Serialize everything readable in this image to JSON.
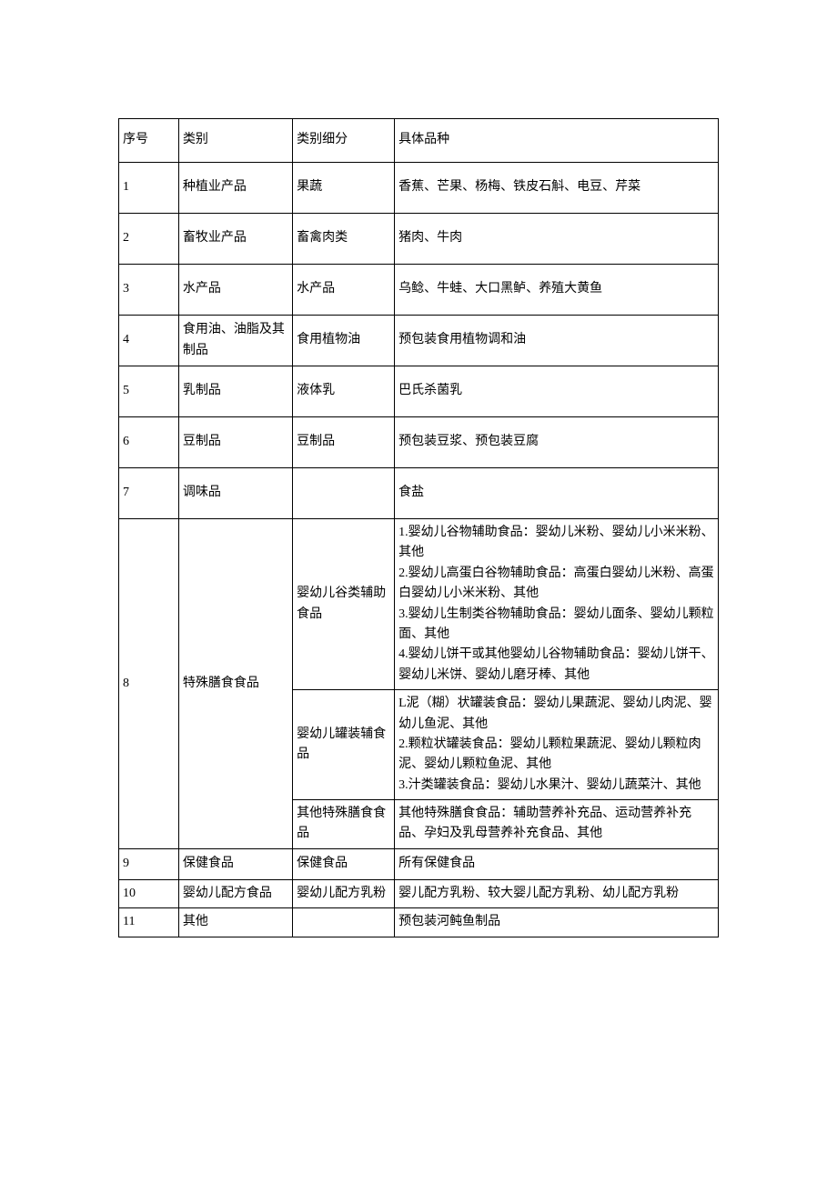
{
  "table": {
    "background_color": "#ffffff",
    "border_color": "#000000",
    "font_family": "SimSun",
    "font_size": 14,
    "text_color": "#000000",
    "columns": [
      {
        "key": "序号",
        "width_pct": 10
      },
      {
        "key": "类别",
        "width_pct": 19
      },
      {
        "key": "类别细分",
        "width_pct": 17
      },
      {
        "key": "具体品种",
        "width_pct": 54
      }
    ],
    "header": {
      "num": "序号",
      "category": "类别",
      "subcategory": "类别细分",
      "detail": "具体品种"
    },
    "rows": [
      {
        "num": "1",
        "category": "种植业产品",
        "subcategory": "果蔬",
        "detail": "香蕉、芒果、杨梅、铁皮石斛、电豆、芹菜"
      },
      {
        "num": "2",
        "category": "畜牧业产品",
        "subcategory": "畜禽肉类",
        "detail": "猪肉、牛肉"
      },
      {
        "num": "3",
        "category": "水产品",
        "subcategory": "水产品",
        "detail": "乌鲶、牛蛙、大口黑鲈、养殖大黄鱼"
      },
      {
        "num": "4",
        "category": "食用油、油脂及其制品",
        "subcategory": "食用植物油",
        "detail": "预包装食用植物调和油"
      },
      {
        "num": "5",
        "category": "乳制品",
        "subcategory": "液体乳",
        "detail": "巴氏杀菌乳"
      },
      {
        "num": "6",
        "category": "豆制品",
        "subcategory": "豆制品",
        "detail": "预包装豆浆、预包装豆腐"
      },
      {
        "num": "7",
        "category": "调味品",
        "subcategory": "",
        "detail": "食盐"
      }
    ],
    "row8": {
      "num": "8",
      "category": "特殊膳食食品",
      "sub1": "婴幼儿谷类辅助食品",
      "det1": "1.婴幼儿谷物辅助食品：婴幼儿米粉、婴幼儿小米米粉、其他\n2.婴幼儿高蛋白谷物辅助食品：高蛋白婴幼儿米粉、高蛋白婴幼儿小米米粉、其他\n3.婴幼儿生制类谷物辅助食品：婴幼儿面条、婴幼儿颗粒面、其他\n4.婴幼儿饼干或其他婴幼儿谷物辅助食品：婴幼儿饼干、婴幼儿米饼、婴幼儿磨牙棒、其他",
      "sub2": "婴幼儿罐装辅食\n品",
      "det2": "L泥（糊）状罐装食品：婴幼儿果蔬泥、婴幼儿肉泥、婴幼儿鱼泥、其他\n2.颗粒状罐装食品：婴幼儿颗粒果蔬泥、婴幼儿颗粒肉泥、婴幼儿颗粒鱼泥、其他\n3.汁类罐装食品：婴幼儿水果汁、婴幼儿蔬菜汁、其他",
      "sub3": "其他特殊膳食食品",
      "det3": "其他特殊膳食食品：辅助营养补充品、运动营养补充品、孕妇及乳母营养补充食品、其他"
    },
    "row9": {
      "num": "9",
      "category": "保健食品",
      "subcategory": "保健食品",
      "detail": "所有保健食品"
    },
    "row10": {
      "num": "10",
      "category": "婴幼儿配方食品",
      "subcategory": "婴幼儿配方乳粉",
      "detail": "婴儿配方乳粉、较大婴儿配方乳粉、幼儿配方乳粉"
    },
    "row11": {
      "num": "11",
      "category": "其他",
      "subcategory": "",
      "detail": "预包装河鲀鱼制品"
    }
  }
}
